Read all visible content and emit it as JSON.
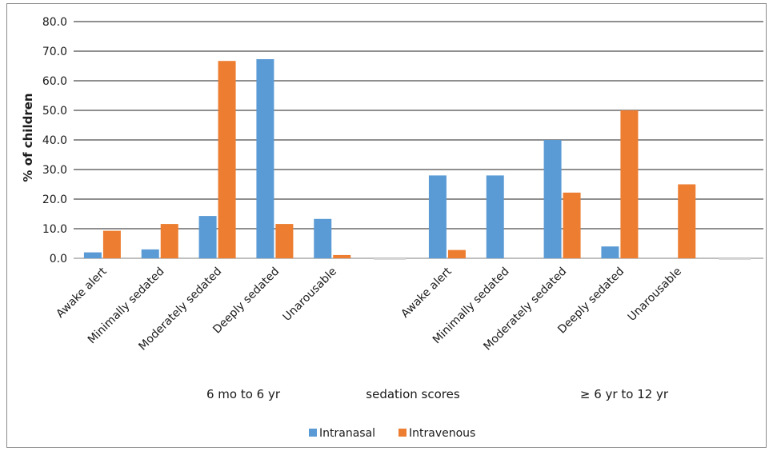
{
  "chart_data": {
    "type": "bar",
    "ylabel": "% of children",
    "ylim": [
      0,
      80
    ],
    "yticks": [
      "0.0",
      "10.0",
      "20.0",
      "30.0",
      "40.0",
      "50.0",
      "60.0",
      "70.0",
      "80.0"
    ],
    "grid": true,
    "legend_position": "bottom",
    "center_label": "sedation scores",
    "groups": [
      {
        "name": "6 mo to 6 yr",
        "categories": [
          "Awake alert",
          "Minimally sedated",
          "Moderately sedated",
          "Deeply sedated",
          "Unarousable"
        ],
        "series": [
          {
            "name": "Intranasal",
            "values": [
              2.0,
              3.0,
              14.3,
              67.3,
              13.3
            ]
          },
          {
            "name": "Intravenous",
            "values": [
              9.3,
              11.6,
              66.7,
              11.6,
              1.1
            ]
          }
        ]
      },
      {
        "name": "≥ 6 yr to 12 yr",
        "categories": [
          "Awake alert",
          "Minimally sedated",
          "Moderately sedated",
          "Deeply sedated",
          "Unarousable"
        ],
        "series": [
          {
            "name": "Intranasal",
            "values": [
              28.0,
              28.0,
              40.0,
              4.0,
              0.0
            ]
          },
          {
            "name": "Intravenous",
            "values": [
              2.8,
              0.0,
              22.2,
              50.0,
              25.0
            ]
          }
        ]
      }
    ],
    "legend": [
      {
        "name": "Intranasal",
        "color": "#5b9bd5"
      },
      {
        "name": "Intravenous",
        "color": "#ed7d31"
      }
    ]
  }
}
